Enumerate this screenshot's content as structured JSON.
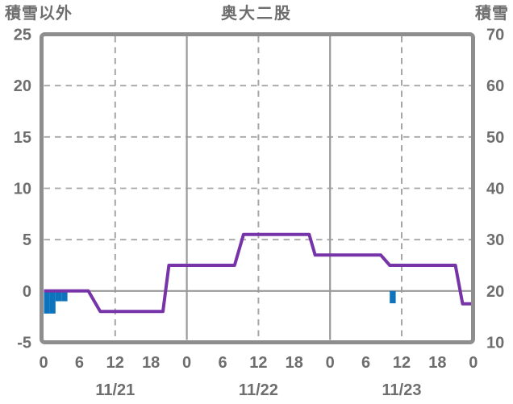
{
  "chart_data": {
    "type": "line",
    "title": "奥大二股",
    "left_axis": {
      "title": "積雪以外",
      "min": -5,
      "max": 25,
      "ticks": [
        25,
        20,
        15,
        10,
        5,
        0,
        -5
      ]
    },
    "right_axis": {
      "title": "積雪",
      "min": 10,
      "max": 70,
      "ticks": [
        70,
        60,
        50,
        40,
        30,
        20,
        10
      ]
    },
    "x_axis": {
      "unit": "hour",
      "range_hours": [
        0,
        72
      ],
      "tick_hours": [
        0,
        6,
        12,
        18,
        24,
        30,
        36,
        42,
        48,
        54,
        60,
        66,
        72
      ],
      "tick_labels": [
        "0",
        "6",
        "12",
        "18",
        "0",
        "6",
        "12",
        "18",
        "0",
        "6",
        "12",
        "18",
        "0"
      ],
      "date_labels": [
        {
          "hour": 12,
          "label": "11/21"
        },
        {
          "hour": 36,
          "label": "11/22"
        },
        {
          "hour": 60,
          "label": "11/23"
        }
      ],
      "solid_gridline_hours": [
        24,
        48
      ],
      "dashed_gridline_hours": [
        12,
        36,
        60
      ]
    },
    "dashed_gridline_levels_left": [
      20,
      15,
      10,
      5
    ],
    "zero_line_level_left": 0,
    "series": [
      {
        "name": "積雪",
        "type": "line",
        "axis": "right",
        "color": "#7634a8",
        "points": [
          [
            0,
            20
          ],
          [
            7.5,
            20
          ],
          [
            9.5,
            16
          ],
          [
            20,
            16
          ],
          [
            21,
            25
          ],
          [
            32,
            25
          ],
          [
            33.5,
            31
          ],
          [
            44.5,
            31
          ],
          [
            45.5,
            27
          ],
          [
            56.5,
            27
          ],
          [
            58,
            25
          ],
          [
            69,
            25
          ],
          [
            70.2,
            17.5
          ],
          [
            72,
            17.5
          ]
        ]
      },
      {
        "name": "積雪以外",
        "type": "bar",
        "axis": "left",
        "color": "#0d73bd",
        "bar_width_hours": 1,
        "bars": [
          {
            "hour": 0,
            "value": -2.2
          },
          {
            "hour": 1,
            "value": -2.2
          },
          {
            "hour": 2,
            "value": -1.0
          },
          {
            "hour": 3,
            "value": -1.0
          },
          {
            "hour": 58,
            "value": -1.2
          }
        ]
      }
    ]
  },
  "colors": {
    "background": "#ffffff",
    "text": "#6e6e6e",
    "border": "#8e8e8e",
    "grid_dashed": "#a6a6a6",
    "grid_solid": "#9a9a9a",
    "line": "#7634a8",
    "bar": "#0d73bd"
  }
}
